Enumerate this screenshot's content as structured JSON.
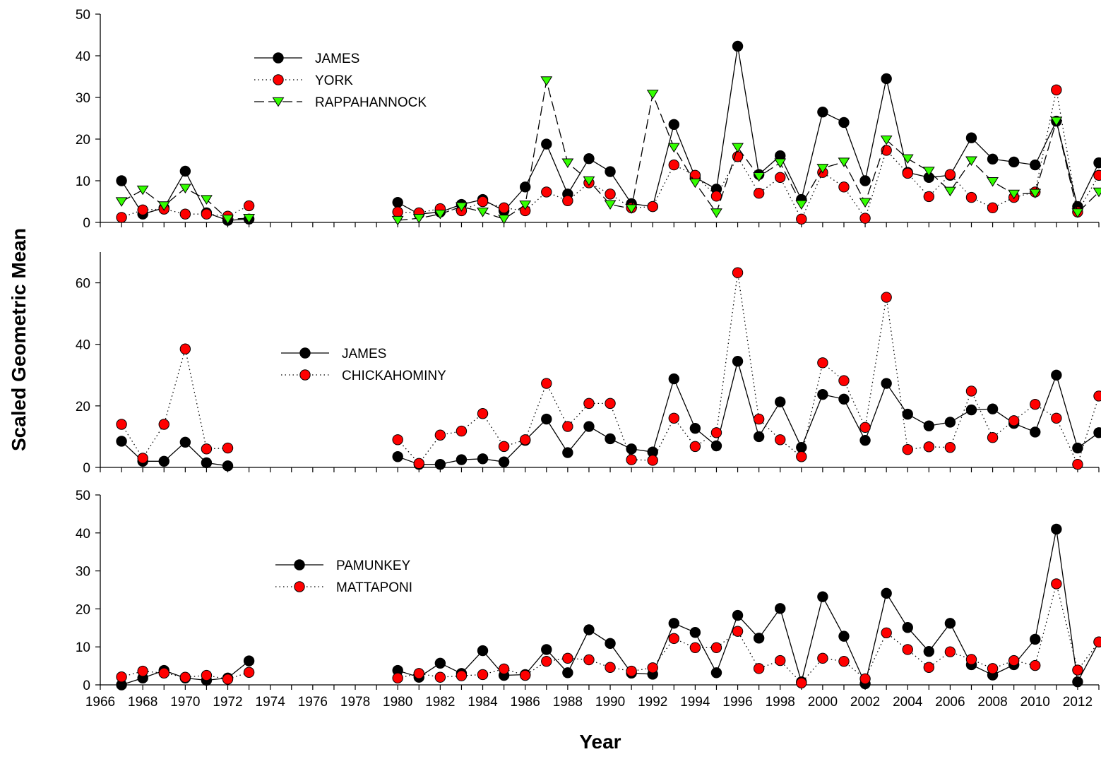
{
  "chart_data": {
    "type": "line",
    "ylabel": "Scaled Geometric Mean",
    "xlabel": "Year",
    "xlim": [
      1966,
      2013
    ],
    "x_ticks": [
      "1966",
      "1968",
      "1970",
      "1972",
      "1974",
      "1976",
      "1978",
      "1980",
      "1982",
      "1984",
      "1986",
      "1988",
      "1990",
      "1992",
      "1994",
      "1996",
      "1998",
      "2000",
      "2002",
      "2004",
      "2006",
      "2008",
      "2010",
      "2012"
    ],
    "years": [
      1967,
      1968,
      1969,
      1970,
      1971,
      1972,
      1973,
      1980,
      1981,
      1982,
      1983,
      1984,
      1985,
      1986,
      1987,
      1988,
      1989,
      1990,
      1991,
      1992,
      1993,
      1994,
      1995,
      1996,
      1997,
      1998,
      1999,
      2000,
      2001,
      2002,
      2003,
      2004,
      2005,
      2006,
      2007,
      2008,
      2009,
      2010,
      2011,
      2012,
      2013
    ],
    "panels": [
      {
        "ylim": [
          0,
          50
        ],
        "y_ticks": [
          "0",
          "10",
          "20",
          "30",
          "40",
          "50"
        ],
        "series": [
          {
            "name": "JAMES",
            "marker": "circle",
            "color": "#000000",
            "line": "solid",
            "values": [
              10,
              2,
              3.5,
              12.3,
              2.3,
              0.5,
              0.8,
              4.8,
              2,
              2.5,
              4.3,
              5.5,
              2.8,
              8.5,
              18.8,
              6.8,
              15.3,
              12.2,
              4.5,
              3.8,
              23.5,
              10.8,
              8,
              42.3,
              11.5,
              16,
              5.5,
              26.5,
              24,
              10,
              34.5,
              12,
              10.8,
              11.3,
              20.3,
              15.2,
              14.5,
              13.8,
              24.3,
              3.8,
              14.3
            ]
          },
          {
            "name": "YORK",
            "marker": "circle",
            "color": "#ff0000",
            "line": "dotted",
            "values": [
              1.2,
              3,
              3.2,
              2,
              2,
              1.5,
              4,
              2.5,
              2.3,
              3.3,
              2.8,
              5,
              3.5,
              2.8,
              7.3,
              5.2,
              9.5,
              6.8,
              3.5,
              3.8,
              13.8,
              11.3,
              6.3,
              15.8,
              7,
              10.8,
              0.8,
              12,
              8.5,
              1,
              17.3,
              11.8,
              6.2,
              11.5,
              6,
              3.5,
              6,
              7.3,
              31.8,
              2.5,
              11.3
            ]
          },
          {
            "name": "RAPPAHANNOCK",
            "marker": "triangle-down",
            "color": "#33ff00",
            "line": "dashed",
            "values": [
              5,
              7.8,
              4,
              8.2,
              5.5,
              0.8,
              1,
              0.5,
              1,
              2,
              3.8,
              2.5,
              0.8,
              4.2,
              34,
              14.3,
              10,
              4.3,
              3.3,
              30.8,
              18,
              9.5,
              2.3,
              18,
              11,
              14.3,
              4.3,
              13,
              14.5,
              4.8,
              19.8,
              15.3,
              12.3,
              7.5,
              14.8,
              9.8,
              6.8,
              7,
              24.3,
              2.3,
              7.3
            ]
          }
        ]
      },
      {
        "ylim": [
          0,
          70
        ],
        "y_ticks": [
          "0",
          "20",
          "40",
          "60"
        ],
        "series": [
          {
            "name": "JAMES",
            "marker": "circle",
            "color": "#000000",
            "line": "solid",
            "values": [
              8.5,
              2,
              2,
              8.2,
              1.5,
              0.5,
              null,
              3.5,
              1,
              1,
              2.5,
              2.8,
              1.8,
              8.8,
              15.7,
              4.8,
              13.3,
              9.3,
              6,
              5,
              28.8,
              12.7,
              7,
              34.5,
              10,
              21.3,
              6.5,
              23.7,
              22.2,
              8.8,
              27.3,
              17.3,
              13.5,
              14.7,
              18.7,
              19,
              14.3,
              11.5,
              30,
              6.3,
              11.3
            ]
          },
          {
            "name": "CHICKAHOMINY",
            "marker": "circle",
            "color": "#ff0000",
            "line": "dotted",
            "values": [
              14,
              3,
              14,
              38.5,
              6,
              6.3,
              null,
              9,
              1.3,
              10.5,
              11.8,
              17.5,
              6.8,
              9,
              27.3,
              13.3,
              20.8,
              20.8,
              2.5,
              2.3,
              16,
              6.8,
              11.3,
              63.3,
              15.7,
              9,
              3.5,
              34,
              28.2,
              13,
              55.3,
              5.8,
              6.7,
              6.5,
              24.8,
              9.7,
              15.2,
              20.5,
              16,
              1,
              23.2
            ]
          }
        ]
      },
      {
        "ylim": [
          0,
          50
        ],
        "y_ticks": [
          "0",
          "10",
          "20",
          "30",
          "40",
          "50"
        ],
        "series": [
          {
            "name": "PAMUNKEY",
            "marker": "circle",
            "color": "#000000",
            "line": "solid",
            "values": [
              0,
              1.8,
              3.8,
              1.8,
              1.2,
              1.8,
              6.3,
              3.8,
              2,
              5.7,
              3,
              9,
              2.5,
              2.7,
              9.3,
              3.2,
              14.5,
              10.9,
              3.1,
              2.8,
              16.2,
              13.8,
              3.2,
              18.3,
              12.3,
              20.1,
              0.8,
              23.2,
              12.8,
              0.3,
              24.1,
              15.1,
              8.8,
              16.2,
              5.3,
              2.6,
              5.3,
              12,
              41,
              0.8,
              11.3
            ]
          },
          {
            "name": "MATTAPONI",
            "marker": "circle",
            "color": "#ff0000",
            "line": "dotted",
            "values": [
              2.1,
              3.6,
              3.1,
              2,
              2.5,
              1.5,
              3.3,
              1.8,
              3,
              2,
              2.4,
              2.7,
              4.2,
              2.5,
              6.2,
              7,
              6.6,
              4.6,
              3.6,
              4.5,
              12.2,
              9.8,
              9.8,
              14.1,
              4.3,
              6.4,
              0.5,
              7,
              6.2,
              1.6,
              13.7,
              9.3,
              4.6,
              8.7,
              6.7,
              4.3,
              6.4,
              5.1,
              26.6,
              3.9,
              11.3
            ]
          }
        ]
      }
    ]
  }
}
